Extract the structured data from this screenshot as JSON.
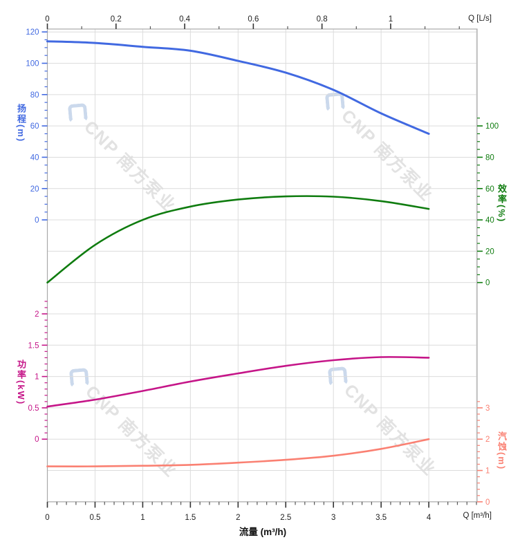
{
  "page": {
    "background": "#ffffff"
  },
  "watermark": {
    "brand_text": "CNP 南方泵业",
    "text_color": "#E2E2E2",
    "logo_color": "#CBD9EC",
    "count": 4
  },
  "chart_data": {
    "type": "line",
    "title": "",
    "grid": {
      "color": "#DCDCDC",
      "border_color": "#A9A9A9",
      "tick_color": "#555555",
      "grid_on": true
    },
    "x_bottom": {
      "title": "流量 (m³/h)",
      "unit_label": "Q [m³/h]",
      "ticks": [
        0,
        0.5,
        1,
        1.5,
        2,
        2.5,
        3,
        3.5,
        4
      ],
      "minor_step": 0.1,
      "minor_max": 4.5,
      "range": [
        0,
        4.51
      ],
      "label_color": "#222222"
    },
    "x_top": {
      "unit_label": "Q [L/s]",
      "ticks": [
        0,
        0.2,
        0.4,
        0.6,
        0.8,
        1
      ],
      "minor_step": 0.1,
      "minor_max": 1.2,
      "lps_to_m3h": 3.6,
      "label_color": "#222222"
    },
    "y_axes": [
      {
        "id": "head",
        "title": "扬程(m)",
        "side": "left",
        "color": "#4169E1",
        "min": 0,
        "max": 120,
        "major_step": 20,
        "minor_step": 5,
        "minor_max": 120,
        "row_min": 6,
        "row_max": 0
      },
      {
        "id": "eff",
        "title": "效率(%)",
        "side": "right",
        "color": "#0F7C0F",
        "min": 0,
        "max": 100,
        "major_step": 20,
        "minor_step": 5,
        "minor_max": 105,
        "row_min": 8,
        "row_max": 3
      },
      {
        "id": "power",
        "title": "功率(kW)",
        "side": "left",
        "color": "#C51588",
        "min": 0,
        "max": 2,
        "major_step": 0.5,
        "minor_step": 0.1,
        "minor_max": 2.2,
        "row_min": 13,
        "row_max": 9
      },
      {
        "id": "npsh",
        "title": "汽蚀(m)",
        "side": "right",
        "color": "#FA8072",
        "min": 0,
        "max": 3,
        "major_step": 1,
        "minor_step": 0.2,
        "minor_max": 3.2,
        "row_min": 15,
        "row_max": 12
      }
    ],
    "series": [
      {
        "name": "head-curve",
        "axis": "head",
        "color": "#4169E1",
        "width": 3,
        "x": [
          0,
          0.5,
          1,
          1.5,
          2,
          2.5,
          3,
          3.5,
          4
        ],
        "y": [
          114,
          113,
          110.5,
          108,
          101.5,
          94,
          83,
          68,
          55
        ]
      },
      {
        "name": "efficiency-curve",
        "axis": "eff",
        "color": "#0F7C0F",
        "width": 2.6,
        "x": [
          0,
          0.5,
          1,
          1.5,
          2,
          2.5,
          3,
          3.5,
          4
        ],
        "y": [
          0,
          24,
          40,
          48.5,
          53,
          55,
          54.8,
          52,
          47
        ]
      },
      {
        "name": "power-curve",
        "axis": "power",
        "color": "#C51588",
        "width": 2.6,
        "x": [
          0,
          0.5,
          1,
          1.5,
          2,
          2.5,
          3,
          3.5,
          4
        ],
        "y": [
          0.52,
          0.63,
          0.77,
          0.92,
          1.05,
          1.17,
          1.26,
          1.31,
          1.3
        ]
      },
      {
        "name": "npsh-curve",
        "axis": "npsh",
        "color": "#FA8072",
        "width": 2.6,
        "x": [
          0,
          0.5,
          1,
          1.5,
          2,
          2.5,
          3,
          3.5,
          4
        ],
        "y": [
          1.13,
          1.13,
          1.15,
          1.18,
          1.25,
          1.34,
          1.47,
          1.69,
          2.0
        ]
      }
    ]
  }
}
